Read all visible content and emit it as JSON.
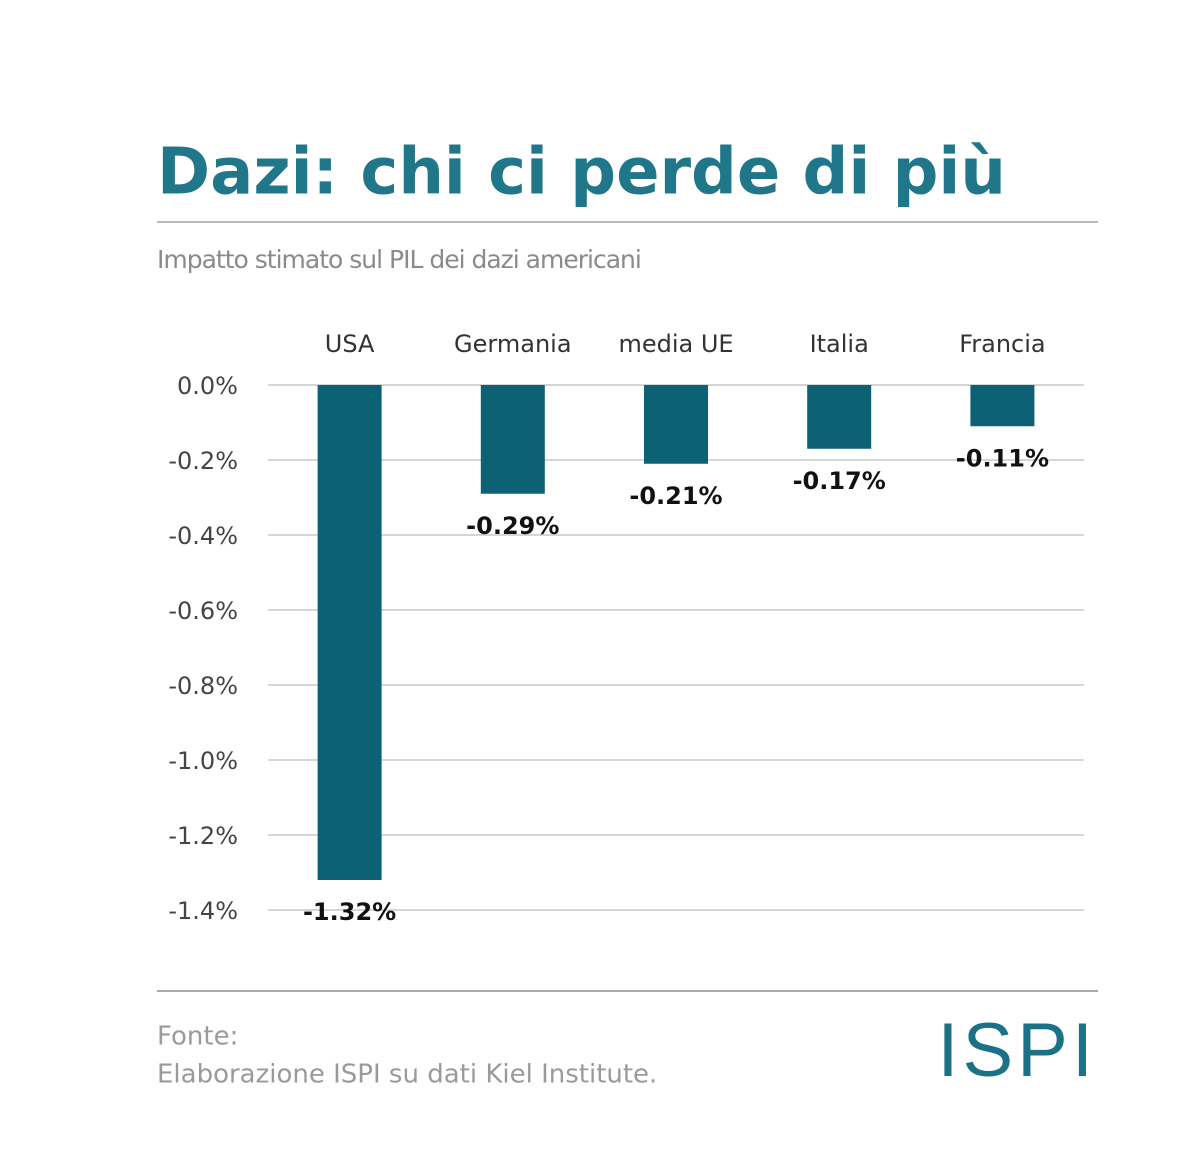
{
  "chart_data": {
    "type": "bar",
    "title": "Dazi: chi ci perde di più",
    "subtitle": "Impatto stimato sul PIL dei dazi americani",
    "categories": [
      "USA",
      "Germania",
      "media UE",
      "Italia",
      "Francia"
    ],
    "values": [
      -1.32,
      -0.29,
      -0.21,
      -0.17,
      -0.11
    ],
    "value_labels": [
      "-1.32%",
      "-0.29%",
      "-0.21%",
      "-0.17%",
      "-0.11%"
    ],
    "color": "#0c6175",
    "ylim": [
      -1.4,
      0
    ],
    "yticks": [
      {
        "value": 0,
        "label": "0.0%"
      },
      {
        "value": -0.2,
        "label": "-0.2%"
      },
      {
        "value": -0.4,
        "label": "-0.4%"
      },
      {
        "value": -0.6,
        "label": "-0.6%"
      },
      {
        "value": -0.8,
        "label": "-0.8%"
      },
      {
        "value": -1.0,
        "label": "-1.0%"
      },
      {
        "value": -1.2,
        "label": "-1.2%"
      },
      {
        "value": -1.4,
        "label": "-1.4%"
      }
    ],
    "grid": true,
    "source_heading": "Fonte:",
    "source": "Elaborazione ISPI su dati Kiel Institute.",
    "logo": "ISPI"
  }
}
